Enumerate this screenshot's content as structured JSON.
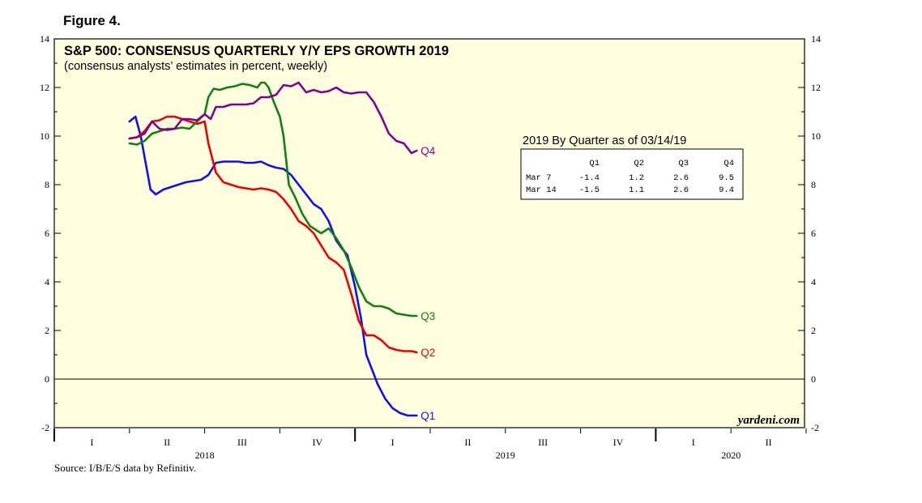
{
  "figure_label": "Figure 4.",
  "source": "Source: I/B/E/S data by Refinitiv.",
  "watermark": "yardeni.com",
  "chart_data": {
    "type": "line",
    "title": "S&P 500: CONSENSUS QUARTERLY Y/Y EPS GROWTH 2019",
    "subtitle": "(consensus analysts’ estimates in percent, weekly)",
    "ylim": [
      -2,
      14
    ],
    "yticks": [
      "-2",
      "0",
      "2",
      "4",
      "6",
      "8",
      "10",
      "12",
      "14"
    ],
    "x_quarters": [
      "I",
      "II",
      "III",
      "IV",
      "I",
      "II",
      "III",
      "IV",
      "I",
      "II"
    ],
    "x_years": [
      "2018",
      "2019",
      "2020"
    ],
    "colors": {
      "Q1": "#1010ee",
      "Q2": "#ee0000",
      "Q3": "#108010",
      "Q4": "#800090"
    },
    "series": [
      {
        "name": "Q1",
        "x": [
          1.0,
          1.08,
          1.15,
          1.28,
          1.35,
          1.45,
          1.55,
          1.65,
          1.75,
          1.85,
          1.95,
          2.05,
          2.15,
          2.25,
          2.35,
          2.45,
          2.55,
          2.65,
          2.75,
          2.85,
          2.95,
          3.05,
          3.15,
          3.25,
          3.35,
          3.45,
          3.55,
          3.65,
          3.75,
          3.82,
          3.9,
          4.0,
          4.08,
          4.15,
          4.25,
          4.3,
          4.4,
          4.5,
          4.6,
          4.7,
          4.82
        ],
        "values": [
          10.6,
          10.8,
          10.0,
          7.8,
          7.6,
          7.8,
          7.9,
          8.0,
          8.1,
          8.15,
          8.2,
          8.4,
          8.9,
          8.95,
          8.95,
          8.95,
          8.9,
          8.9,
          8.95,
          8.8,
          8.7,
          8.65,
          8.4,
          8.0,
          7.6,
          7.2,
          7.0,
          6.5,
          5.7,
          5.4,
          5.1,
          3.8,
          2.5,
          1.0,
          0.2,
          -0.2,
          -0.8,
          -1.2,
          -1.4,
          -1.5,
          -1.5
        ]
      },
      {
        "name": "Q2",
        "x": [
          1.0,
          1.1,
          1.2,
          1.3,
          1.4,
          1.5,
          1.6,
          1.7,
          1.8,
          1.9,
          2.0,
          2.05,
          2.15,
          2.25,
          2.35,
          2.45,
          2.55,
          2.65,
          2.75,
          2.85,
          2.95,
          3.05,
          3.15,
          3.25,
          3.35,
          3.45,
          3.55,
          3.65,
          3.75,
          3.85,
          3.95,
          4.05,
          4.15,
          4.25,
          4.35,
          4.45,
          4.55,
          4.65,
          4.75,
          4.82
        ],
        "values": [
          9.9,
          9.95,
          10.2,
          10.6,
          10.65,
          10.8,
          10.8,
          10.7,
          10.6,
          10.5,
          10.6,
          9.7,
          8.5,
          8.1,
          8.0,
          7.9,
          7.85,
          7.8,
          7.85,
          7.8,
          7.7,
          7.4,
          7.0,
          6.5,
          6.3,
          6.0,
          5.5,
          5.0,
          4.8,
          4.5,
          3.5,
          2.4,
          1.8,
          1.8,
          1.6,
          1.3,
          1.2,
          1.15,
          1.15,
          1.1
        ]
      },
      {
        "name": "Q3",
        "x": [
          1.0,
          1.1,
          1.2,
          1.3,
          1.4,
          1.5,
          1.6,
          1.7,
          1.8,
          1.9,
          2.0,
          2.05,
          2.12,
          2.2,
          2.3,
          2.4,
          2.5,
          2.6,
          2.7,
          2.75,
          2.8,
          2.85,
          2.92,
          3.0,
          3.05,
          3.12,
          3.2,
          3.3,
          3.4,
          3.5,
          3.55,
          3.65,
          3.75,
          3.85,
          3.95,
          4.05,
          4.15,
          4.25,
          4.35,
          4.45,
          4.55,
          4.65,
          4.75,
          4.82
        ],
        "values": [
          9.7,
          9.65,
          9.8,
          10.1,
          10.2,
          10.3,
          10.3,
          10.35,
          10.3,
          10.6,
          10.9,
          11.6,
          11.95,
          11.9,
          12.0,
          12.05,
          12.15,
          12.1,
          12.0,
          12.2,
          12.2,
          12.0,
          11.4,
          10.8,
          10.0,
          8.0,
          7.5,
          6.8,
          6.3,
          6.1,
          6.0,
          6.2,
          5.8,
          5.3,
          4.6,
          3.8,
          3.2,
          3.0,
          3.0,
          2.9,
          2.7,
          2.65,
          2.6,
          2.6
        ]
      },
      {
        "name": "Q4",
        "x": [
          1.0,
          1.1,
          1.2,
          1.3,
          1.4,
          1.5,
          1.6,
          1.7,
          1.8,
          1.9,
          2.0,
          2.08,
          2.15,
          2.25,
          2.35,
          2.45,
          2.55,
          2.65,
          2.75,
          2.85,
          2.95,
          3.05,
          3.15,
          3.25,
          3.35,
          3.45,
          3.55,
          3.65,
          3.75,
          3.85,
          3.95,
          4.05,
          4.15,
          4.25,
          4.35,
          4.45,
          4.55,
          4.65,
          4.75,
          4.82
        ],
        "values": [
          9.9,
          9.95,
          10.1,
          10.6,
          10.3,
          10.25,
          10.3,
          10.7,
          10.7,
          10.65,
          10.9,
          10.7,
          11.2,
          11.2,
          11.3,
          11.3,
          11.3,
          11.35,
          11.6,
          11.6,
          11.7,
          12.1,
          12.05,
          12.2,
          11.8,
          11.9,
          11.8,
          11.85,
          12.0,
          11.8,
          11.75,
          11.8,
          11.8,
          11.4,
          10.8,
          10.1,
          9.8,
          9.7,
          9.3,
          9.4
        ]
      }
    ],
    "table": {
      "title": "2019 By Quarter as of 03/14/19",
      "columns": [
        "Q1",
        "Q2",
        "Q3",
        "Q4"
      ],
      "rows": [
        {
          "label": "Mar  7",
          "values": [
            "-1.4",
            "1.2",
            "2.6",
            "9.5"
          ]
        },
        {
          "label": "Mar 14",
          "values": [
            "-1.5",
            "1.1",
            "2.6",
            "9.4"
          ]
        }
      ]
    }
  }
}
